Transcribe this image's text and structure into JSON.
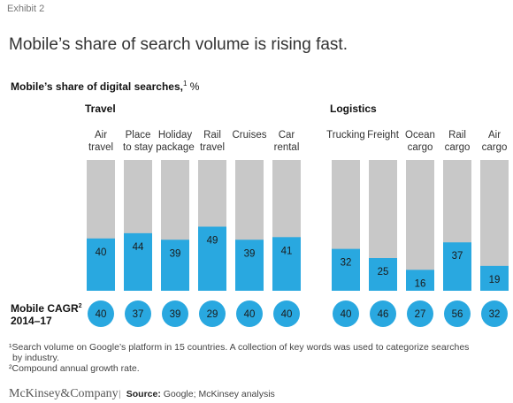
{
  "exhibit": "Exhibit 2",
  "headline": "Mobile’s share of search volume is rising fast.",
  "chart_title": {
    "main": "Mobile’s share of digital searches,",
    "footnote_mark": "1",
    "unit": "%"
  },
  "cagr_label": {
    "line1": "Mobile CAGR",
    "mark": "2",
    "line2": "2014–17"
  },
  "chart_data": {
    "type": "bar",
    "title": "Mobile’s share of digital searches, %",
    "ylim": [
      0,
      100
    ],
    "groups": [
      {
        "name": "Travel",
        "categories": [
          [
            "Air",
            "travel"
          ],
          [
            "Place",
            "to stay"
          ],
          [
            "Holiday",
            "package"
          ],
          [
            "Rail",
            "travel"
          ],
          [
            "Cruises"
          ],
          [
            "Car",
            "rental"
          ]
        ],
        "values": [
          40,
          44,
          39,
          49,
          39,
          41
        ],
        "cagr": [
          40,
          37,
          39,
          29,
          40,
          40
        ]
      },
      {
        "name": "Logistics",
        "categories": [
          [
            "Trucking"
          ],
          [
            "Freight"
          ],
          [
            "Ocean",
            "cargo"
          ],
          [
            "Rail",
            "cargo"
          ],
          [
            "Air",
            "cargo"
          ]
        ],
        "values": [
          32,
          25,
          16,
          37,
          19
        ],
        "cagr": [
          40,
          46,
          27,
          56,
          32
        ]
      }
    ],
    "colors": {
      "mobile": "#29a8e0",
      "background_bar": "#c8c8c8"
    }
  },
  "footnotes": {
    "note1": "¹Search volume on Google’s platform in 15 countries. A collection of key words was used to categorize searches",
    "note1b": "by industry.",
    "note2": "²Compound annual growth rate."
  },
  "brand": "McKinsey&Company",
  "source": {
    "label": "Source:",
    "text": "Google; McKinsey analysis"
  }
}
